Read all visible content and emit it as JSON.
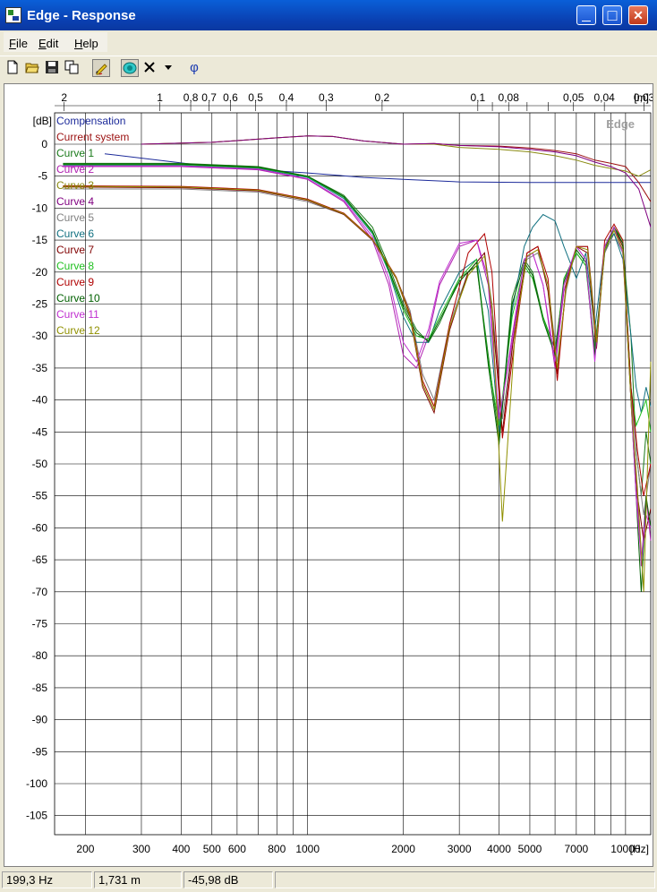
{
  "window": {
    "title": "Edge - Response",
    "minimize_glyph": "—",
    "maximize_glyph": "□",
    "close_glyph": "✕"
  },
  "menu": [
    {
      "label": "File",
      "key": "F",
      "rest": "ile"
    },
    {
      "label": "Edit",
      "key": "E",
      "rest": "dit"
    },
    {
      "label": "Help",
      "key": "H",
      "rest": "elp"
    }
  ],
  "toolbar": {
    "buttons": [
      "new-document-icon",
      "open-folder-icon",
      "save-icon",
      "copy-icon",
      "draw-pencil-icon",
      "speaker-icon",
      "delete-x-icon",
      "dropdown-arrow-icon",
      "phase-icon"
    ],
    "phase_label": "φ"
  },
  "status": {
    "frequency": "199,3 Hz",
    "distance": "1,731 m",
    "level": "-45,98 dB"
  },
  "colors": {
    "compensation": "#1c2a9a",
    "current_system": "#9b1010",
    "curve1": "#1a7a1a",
    "curve2": "#b020b0",
    "curve3": "#8a8a10",
    "curve4": "#800080",
    "curve5": "#808080",
    "curve6": "#107080",
    "curve7": "#800000",
    "curve8": "#20c020",
    "curve9": "#b00000",
    "curve10": "#006000",
    "curve11": "#c030d0",
    "curve12": "#909000"
  },
  "chart_data": {
    "type": "line",
    "watermark": "Edge",
    "y_unit": "[dB]",
    "x_unit": "[Hz]",
    "top_unit": "[m]",
    "x_scale": "log",
    "xlim": [
      160,
      12000
    ],
    "ylim": [
      -110,
      3
    ],
    "grid": true,
    "legend": "top-left",
    "y_ticks": [
      0,
      -5,
      -10,
      -15,
      -20,
      -25,
      -30,
      -35,
      -40,
      -45,
      -50,
      -55,
      -60,
      -65,
      -70,
      -75,
      -80,
      -85,
      -90,
      -95,
      -100,
      -105
    ],
    "x_ticks": [
      200,
      300,
      400,
      500,
      600,
      800,
      1000,
      2000,
      3000,
      4000,
      5000,
      7000,
      10000
    ],
    "x_minor": [
      700,
      900,
      6000,
      8000,
      9000
    ],
    "top_ticks": [
      2,
      1,
      0.8,
      0.7,
      0.6,
      0.5,
      0.4,
      0.3,
      0.2,
      0.1,
      0.08,
      0.05,
      0.04,
      0.03
    ],
    "top_minor": [
      0.09,
      0.07,
      0.06
    ],
    "series": [
      {
        "name": "Compensation",
        "color": "#1c2a9a",
        "x": [
          230,
          500,
          1000,
          1500,
          2000,
          3000,
          5000,
          8000,
          12000
        ],
        "y": [
          -1.5,
          -3.5,
          -4.5,
          -5.2,
          -5.5,
          -5.9,
          -6,
          -6,
          -6
        ]
      },
      {
        "name": "Current system",
        "color": "#9b1010",
        "x": [
          300,
          500,
          800,
          1000,
          1200,
          1500,
          2000,
          2500,
          3000,
          4000,
          5000,
          6000,
          7000,
          8000,
          9000,
          10000,
          11000,
          12000
        ],
        "y": [
          0,
          0.3,
          1,
          1.3,
          1.2,
          0.5,
          0,
          0.1,
          -0.2,
          -0.3,
          -0.6,
          -1,
          -1.5,
          -2.5,
          -3,
          -3.5,
          -6,
          -9
        ]
      },
      {
        "name": "Curve 1",
        "color": "#1a7a1a",
        "x": [
          170,
          400,
          700,
          1000,
          1300,
          1600,
          1800,
          2000,
          2200,
          2400,
          2600,
          3000,
          3400,
          3700,
          4000,
          4400,
          4800,
          5100,
          5500,
          6000,
          6400,
          7000,
          7500,
          8000,
          8600,
          9200,
          9800,
          10400,
          10800,
          11200,
          11600,
          12000
        ],
        "y": [
          -3,
          -3,
          -3.5,
          -5,
          -8,
          -13,
          -19,
          -25,
          -29,
          -31,
          -28,
          -21,
          -19,
          -33,
          -46,
          -24,
          -18,
          -20,
          -27,
          -32,
          -22,
          -17,
          -19,
          -32,
          -17,
          -13,
          -16,
          -30,
          -48,
          -55,
          -45,
          -50
        ]
      },
      {
        "name": "Curve 2",
        "color": "#b020b0",
        "x": [
          170,
          400,
          700,
          1000,
          1300,
          1600,
          1800,
          2000,
          2200,
          2400,
          2600,
          3000,
          3400,
          3700,
          4000,
          4400,
          4800,
          5100,
          5500,
          6000,
          6400,
          7000,
          7500,
          8000,
          8600,
          9200,
          9800,
          10400,
          10800,
          11200,
          11600,
          12000
        ],
        "y": [
          -3.5,
          -3.5,
          -4,
          -5.5,
          -9,
          -15,
          -22,
          -33,
          -35,
          -30,
          -22,
          -16,
          -15,
          -22,
          -44,
          -30,
          -18,
          -17,
          -22,
          -35,
          -23,
          -16,
          -18,
          -33,
          -16,
          -13,
          -17,
          -38,
          -52,
          -66,
          -55,
          -62
        ]
      },
      {
        "name": "Curve 3",
        "color": "#8a8a10",
        "x": [
          300,
          500,
          800,
          1000,
          1200,
          1500,
          2000,
          2500,
          3000,
          4000,
          5000,
          6000,
          7000,
          8000,
          9000,
          10000,
          11000,
          12000
        ],
        "y": [
          0,
          0.3,
          1,
          1.3,
          1.2,
          0.5,
          0,
          0,
          -0.5,
          -0.8,
          -1.2,
          -1.8,
          -2.5,
          -3.3,
          -3.8,
          -4.2,
          -5,
          -4
        ]
      },
      {
        "name": "Curve 4",
        "color": "#800080",
        "x": [
          300,
          500,
          800,
          1000,
          1200,
          1500,
          2000,
          2500,
          3000,
          4000,
          5000,
          6000,
          7000,
          8000,
          9000,
          10000,
          11000,
          12000
        ],
        "y": [
          0,
          0.3,
          1,
          1.3,
          1.2,
          0.5,
          0,
          0.1,
          -0.2,
          -0.4,
          -0.8,
          -1.2,
          -1.8,
          -2.8,
          -3.5,
          -4.5,
          -7,
          -13
        ]
      },
      {
        "name": "Curve 5",
        "color": "#808080",
        "x": [
          170,
          400,
          700,
          1000,
          1300,
          1600,
          1900,
          2100,
          2300,
          2500,
          2800,
          3200,
          3600,
          3800,
          4100,
          4500,
          4900,
          5300,
          5700,
          6100,
          6500,
          7000,
          7600,
          8100,
          8600,
          9200,
          9800,
          10400,
          10900,
          11400,
          12000
        ],
        "y": [
          -7,
          -7,
          -7.5,
          -9,
          -11,
          -15,
          -21,
          -26,
          -36,
          -40,
          -28,
          -20,
          -17,
          -25,
          -43,
          -28,
          -18,
          -17,
          -22,
          -34,
          -23,
          -16,
          -16,
          -30,
          -17,
          -14,
          -17,
          -38,
          -50,
          -58,
          -50
        ]
      },
      {
        "name": "Curve 6",
        "color": "#107080",
        "x": [
          170,
          400,
          700,
          1000,
          1300,
          1600,
          1800,
          2000,
          2200,
          2400,
          2600,
          3000,
          3400,
          3700,
          4000,
          4400,
          4800,
          5100,
          5500,
          6000,
          6400,
          7000,
          7500,
          8000,
          8600,
          9200,
          9800,
          10400,
          10800,
          11200,
          11600,
          12000
        ],
        "y": [
          -3.3,
          -3.3,
          -3.8,
          -5.2,
          -8.5,
          -14,
          -20,
          -27,
          -31,
          -31,
          -26,
          -20,
          -18,
          -26,
          -45,
          -26,
          -16,
          -13,
          -11,
          -12,
          -16,
          -21,
          -17,
          -29,
          -16,
          -14,
          -18,
          -30,
          -38,
          -42,
          -38,
          -41
        ]
      },
      {
        "name": "Curve 7",
        "color": "#800000",
        "x": [
          170,
          400,
          700,
          1000,
          1300,
          1600,
          1900,
          2100,
          2300,
          2500,
          2800,
          3200,
          3600,
          3800,
          4100,
          4500,
          4900,
          5300,
          5700,
          6100,
          6500,
          7000,
          7600,
          8100,
          8600,
          9200,
          9800,
          10400,
          10900,
          11400,
          12000
        ],
        "y": [
          -6.7,
          -6.8,
          -7.3,
          -8.8,
          -11,
          -15,
          -21,
          -27,
          -38,
          -42,
          -29,
          -20,
          -17,
          -26,
          -45,
          -28,
          -17,
          -16,
          -23,
          -36,
          -22,
          -16,
          -17,
          -32,
          -16,
          -13,
          -16,
          -40,
          -55,
          -62,
          -57
        ]
      },
      {
        "name": "Curve 8",
        "color": "#20c020",
        "x": [
          170,
          400,
          700,
          1000,
          1300,
          1600,
          1800,
          2000,
          2200,
          2400,
          2600,
          3000,
          3400,
          3700,
          4000,
          4400,
          4800,
          5100,
          5500,
          6000,
          6400,
          7000,
          7500,
          8000,
          8600,
          9200,
          9800,
          10400,
          10800,
          11200,
          11600,
          12000
        ],
        "y": [
          -3.2,
          -3.2,
          -3.7,
          -5.1,
          -8.3,
          -13.8,
          -19.8,
          -26,
          -30,
          -30.5,
          -27,
          -21,
          -18,
          -34,
          -44,
          -27,
          -19,
          -21,
          -27,
          -33,
          -21,
          -17,
          -19,
          -33,
          -16,
          -13,
          -15,
          -38,
          -44,
          -42,
          -40,
          -45
        ]
      },
      {
        "name": "Curve 9",
        "color": "#b00000",
        "x": [
          170,
          400,
          700,
          1000,
          1300,
          1600,
          1900,
          2100,
          2300,
          2500,
          2800,
          3200,
          3600,
          3800,
          4100,
          4500,
          4900,
          5300,
          5700,
          6100,
          6500,
          7000,
          7600,
          8100,
          8600,
          9200,
          9800,
          10400,
          10900,
          11400,
          12000
        ],
        "y": [
          -6.5,
          -6.6,
          -7.1,
          -8.6,
          -10.8,
          -14.8,
          -20.8,
          -26.5,
          -37,
          -41,
          -28,
          -17,
          -14,
          -20,
          -46,
          -30,
          -17,
          -16,
          -21,
          -37,
          -22,
          -16,
          -16,
          -31,
          -15,
          -12.5,
          -15,
          -38,
          -48,
          -55,
          -50
        ]
      },
      {
        "name": "Curve 10",
        "color": "#006000",
        "x": [
          170,
          400,
          700,
          1000,
          1300,
          1600,
          1800,
          2000,
          2200,
          2400,
          2600,
          3000,
          3400,
          3700,
          4000,
          4400,
          4800,
          5100,
          5500,
          6000,
          6400,
          7000,
          7500,
          8000,
          8600,
          9200,
          9800,
          10400,
          10800,
          11200,
          11600,
          12000
        ],
        "y": [
          -3.1,
          -3.1,
          -3.6,
          -5,
          -8.2,
          -13.6,
          -19.6,
          -25.5,
          -29.5,
          -30.8,
          -27.5,
          -21.5,
          -18.5,
          -34.5,
          -47,
          -25,
          -18.5,
          -20.5,
          -27.5,
          -33,
          -21.5,
          -16.5,
          -18.5,
          -33,
          -16.5,
          -13,
          -15.5,
          -40,
          -55,
          -70,
          -55,
          -60
        ]
      },
      {
        "name": "Curve 11",
        "color": "#c030d0",
        "x": [
          170,
          400,
          700,
          1000,
          1300,
          1600,
          1800,
          2000,
          2200,
          2400,
          2600,
          3000,
          3400,
          3700,
          4000,
          4400,
          4800,
          5100,
          5500,
          6000,
          6400,
          7000,
          7500,
          8000,
          8600,
          9200,
          9800,
          10400,
          10800,
          11200,
          11600,
          12000
        ],
        "y": [
          -3.4,
          -3.4,
          -3.9,
          -5.4,
          -8.8,
          -14.5,
          -21,
          -31,
          -34,
          -29,
          -21.5,
          -15.5,
          -15,
          -21,
          -43,
          -31,
          -18,
          -17,
          -22,
          -34,
          -22,
          -16,
          -18,
          -34,
          -16,
          -13,
          -17,
          -40,
          -55,
          -65,
          -58,
          -60
        ]
      },
      {
        "name": "Curve 12",
        "color": "#909000",
        "x": [
          170,
          400,
          700,
          1000,
          1300,
          1600,
          1900,
          2100,
          2300,
          2500,
          2800,
          3200,
          3600,
          3800,
          4100,
          4500,
          4900,
          5300,
          5700,
          6100,
          6500,
          7000,
          7600,
          8100,
          8600,
          9200,
          9800,
          10400,
          10900,
          11400,
          12000
        ],
        "y": [
          -6.6,
          -6.7,
          -7.2,
          -8.7,
          -10.9,
          -14.9,
          -20.9,
          -26.8,
          -37.5,
          -41.5,
          -28.5,
          -20.5,
          -17.5,
          -25.5,
          -59,
          -29,
          -17.5,
          -16.5,
          -22,
          -35,
          -22.5,
          -16,
          -16.5,
          -31,
          -16.5,
          -13.5,
          -16.5,
          -40,
          -54,
          -70,
          -34
        ]
      }
    ]
  }
}
